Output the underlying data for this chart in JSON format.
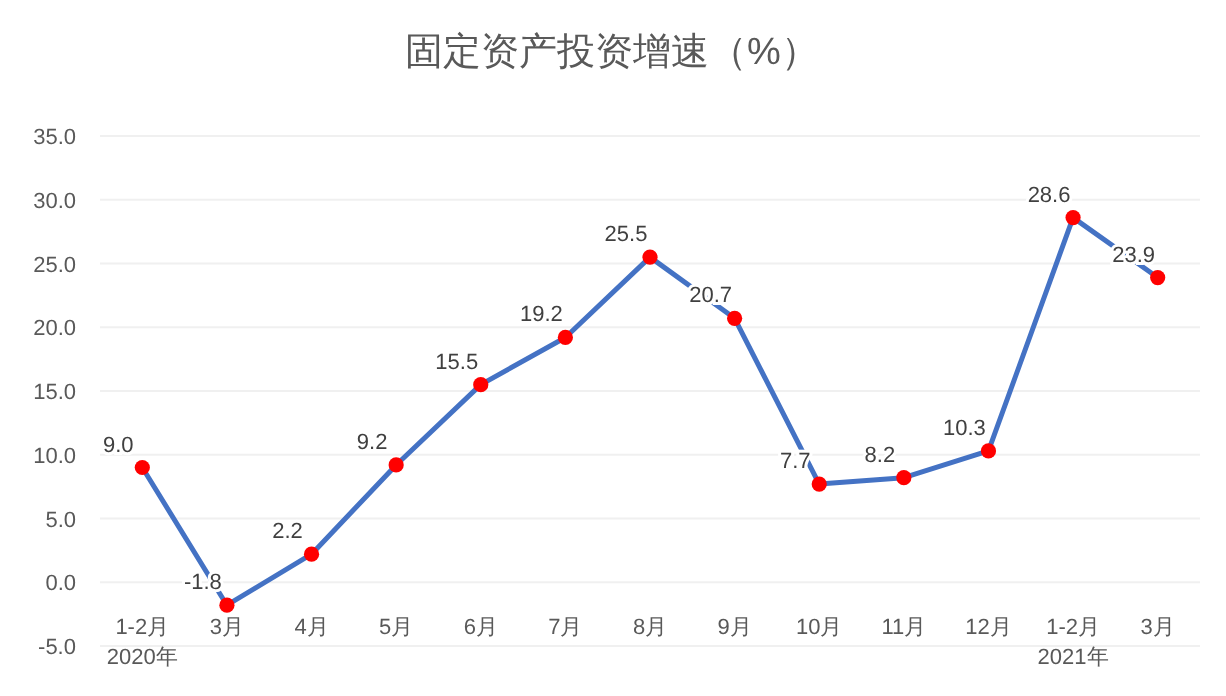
{
  "chart_data": {
    "type": "line",
    "title": "固定资产投资增速（%）",
    "categories": [
      "1-2月\n2020年",
      "3月",
      "4月",
      "5月",
      "6月",
      "7月",
      "8月",
      "9月",
      "10月",
      "11月",
      "12月",
      "1-2月\n2021年",
      "3月"
    ],
    "series": [
      {
        "color": "#4472c4",
        "colors": [
          "#ff0000",
          "#ff0000",
          "#ff0000",
          "#ff0000",
          "#ff0000",
          "#ff0000",
          "#ff0000",
          "#ff0000",
          "#ff0000",
          "#ff0000",
          "#ff0000",
          "#ff0000",
          "#ff0000"
        ],
        "values": [
          9.0,
          -1.8,
          2.2,
          9.2,
          15.5,
          19.2,
          25.5,
          20.7,
          7.7,
          8.2,
          10.3,
          28.6,
          23.9
        ],
        "value_labels": [
          "9.0",
          "-1.8",
          "2.2",
          "9.2",
          "15.5",
          "19.2",
          "25.5",
          "20.7",
          "7.7",
          "8.2",
          "10.3",
          "28.6",
          "23.9"
        ]
      }
    ],
    "ylim": [
      -5,
      35
    ],
    "yticks": [
      {
        "value": -5,
        "label": "-5.0"
      },
      {
        "value": 0,
        "label": "0.0"
      },
      {
        "value": 5,
        "label": "5.0"
      },
      {
        "value": 10,
        "label": "10.0"
      },
      {
        "value": 15,
        "label": "15.0"
      },
      {
        "value": 20,
        "label": "20.0"
      },
      {
        "value": 25,
        "label": "25.0"
      },
      {
        "value": 30,
        "label": "30.0"
      },
      {
        "value": 35,
        "label": "35.0"
      }
    ],
    "grid": "y",
    "marker": "circle"
  }
}
